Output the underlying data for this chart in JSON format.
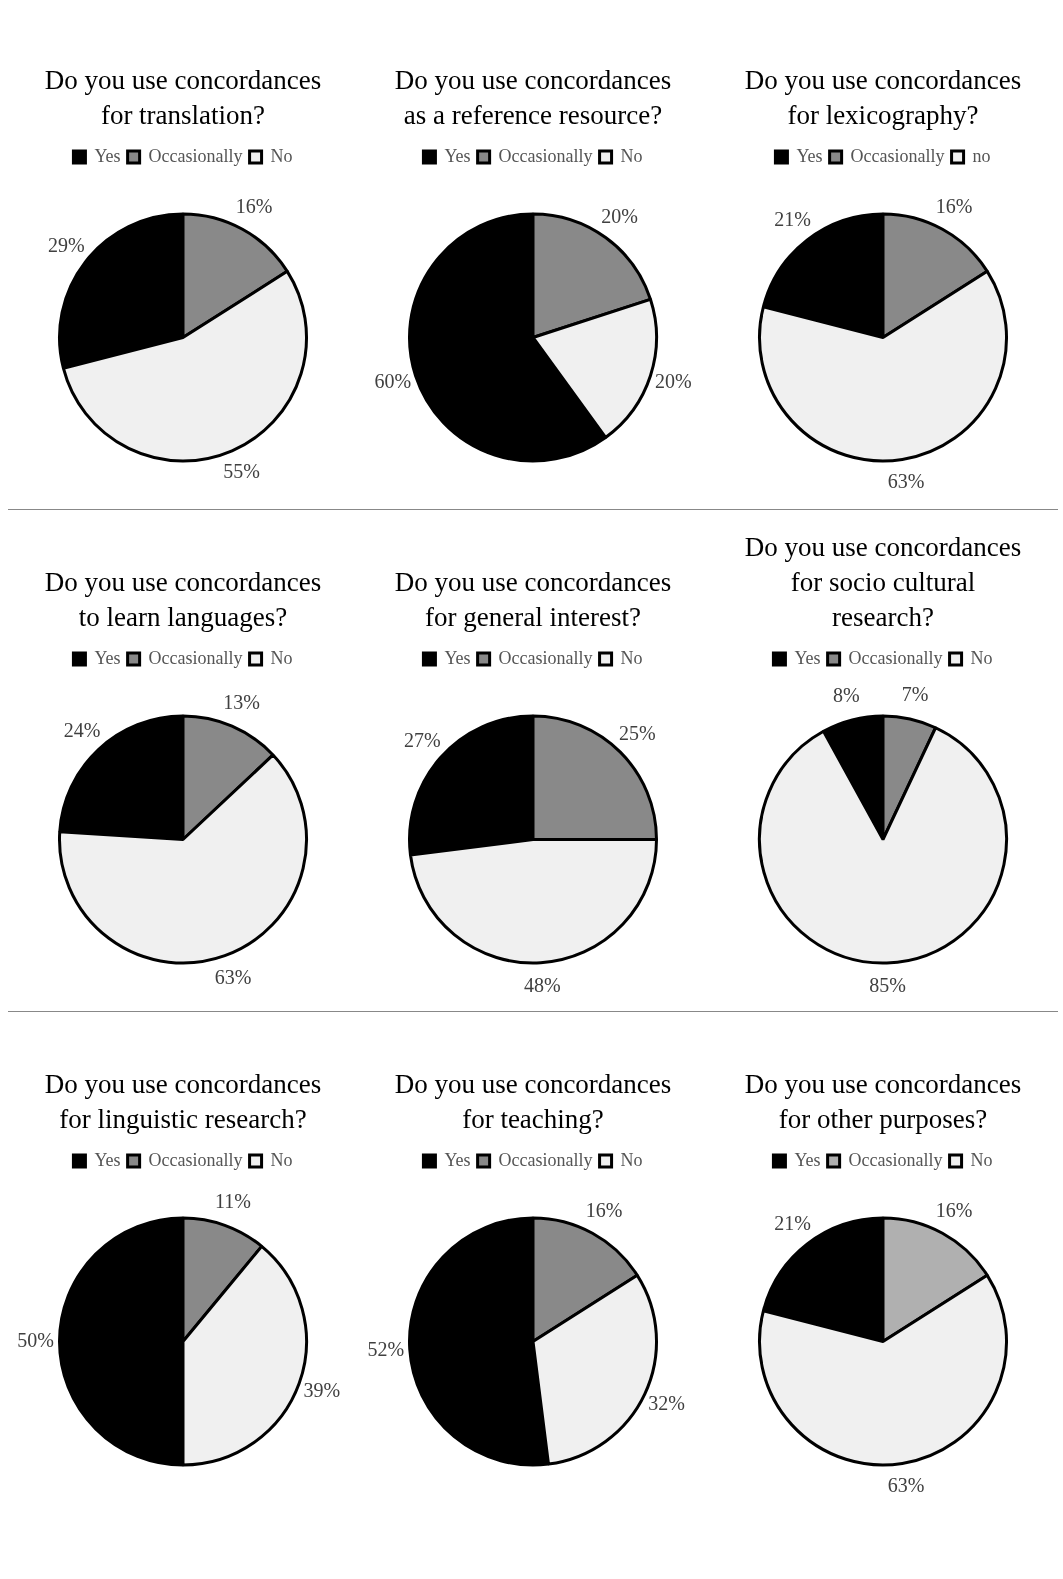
{
  "chart_data": [
    {
      "type": "pie",
      "title": "Do you use concordances for translation?",
      "categories": [
        "Yes",
        "Occasionally",
        "No"
      ],
      "values": [
        29,
        16,
        55
      ],
      "colors": [
        "#000000",
        "#898989",
        "#f0f0f0"
      ],
      "value_labels": [
        "29%",
        "16%",
        "55%"
      ],
      "legend": "top"
    },
    {
      "type": "pie",
      "title": "Do you use concordances as a reference resource?",
      "categories": [
        "Yes",
        "Occasionally",
        "No"
      ],
      "values": [
        60,
        20,
        20
      ],
      "colors": [
        "#000000",
        "#898989",
        "#f0f0f0"
      ],
      "value_labels": [
        "60%",
        "20%",
        "20%"
      ],
      "legend": "top"
    },
    {
      "type": "pie",
      "title": "Do you use concordances for lexicography?",
      "categories": [
        "Yes",
        "Occasionally",
        "no"
      ],
      "values": [
        21,
        16,
        63
      ],
      "colors": [
        "#000000",
        "#898989",
        "#f0f0f0"
      ],
      "value_labels": [
        "21%",
        "16%",
        "63%"
      ],
      "legend": "top"
    },
    {
      "type": "pie",
      "title": "Do you use concordances to learn languages?",
      "categories": [
        "Yes",
        "Occasionally",
        "No"
      ],
      "values": [
        24,
        13,
        63
      ],
      "colors": [
        "#000000",
        "#898989",
        "#f0f0f0"
      ],
      "value_labels": [
        "24%",
        "13%",
        "63%"
      ],
      "legend": "top"
    },
    {
      "type": "pie",
      "title": "Do you use concordances for general interest?",
      "categories": [
        "Yes",
        "Occasionally",
        "No"
      ],
      "values": [
        27,
        25,
        48
      ],
      "colors": [
        "#000000",
        "#898989",
        "#f0f0f0"
      ],
      "value_labels": [
        "27%",
        "25%",
        "48%"
      ],
      "legend": "top"
    },
    {
      "type": "pie",
      "title": "Do you use concordances for socio cultural research?",
      "categories": [
        "Yes",
        "Occasionally",
        "No"
      ],
      "values": [
        8,
        7,
        85
      ],
      "colors": [
        "#000000",
        "#898989",
        "#f0f0f0"
      ],
      "value_labels": [
        "8%",
        "7%",
        "85%"
      ],
      "legend": "top"
    },
    {
      "type": "pie",
      "title": "Do you use concordances for linguistic research?",
      "categories": [
        "Yes",
        "Occasionally",
        "No"
      ],
      "values": [
        50,
        11,
        39
      ],
      "colors": [
        "#000000",
        "#898989",
        "#f0f0f0"
      ],
      "value_labels": [
        "50%",
        "11%",
        "39%"
      ],
      "legend": "top"
    },
    {
      "type": "pie",
      "title": "Do you use concordances for teaching?",
      "categories": [
        "Yes",
        "Occasionally",
        "No"
      ],
      "values": [
        52,
        16,
        32
      ],
      "colors": [
        "#000000",
        "#898989",
        "#f0f0f0"
      ],
      "value_labels": [
        "52%",
        "16%",
        "32%"
      ],
      "legend": "top"
    },
    {
      "type": "pie",
      "title": "Do you use concordances for other purposes?",
      "categories": [
        "Yes",
        "Occasionally",
        "No"
      ],
      "values": [
        21,
        16,
        63
      ],
      "colors": [
        "#000000",
        "#b0b0b0",
        "#f0f0f0"
      ],
      "value_labels": [
        "21%",
        "16%",
        "63%"
      ],
      "legend": "top"
    }
  ]
}
